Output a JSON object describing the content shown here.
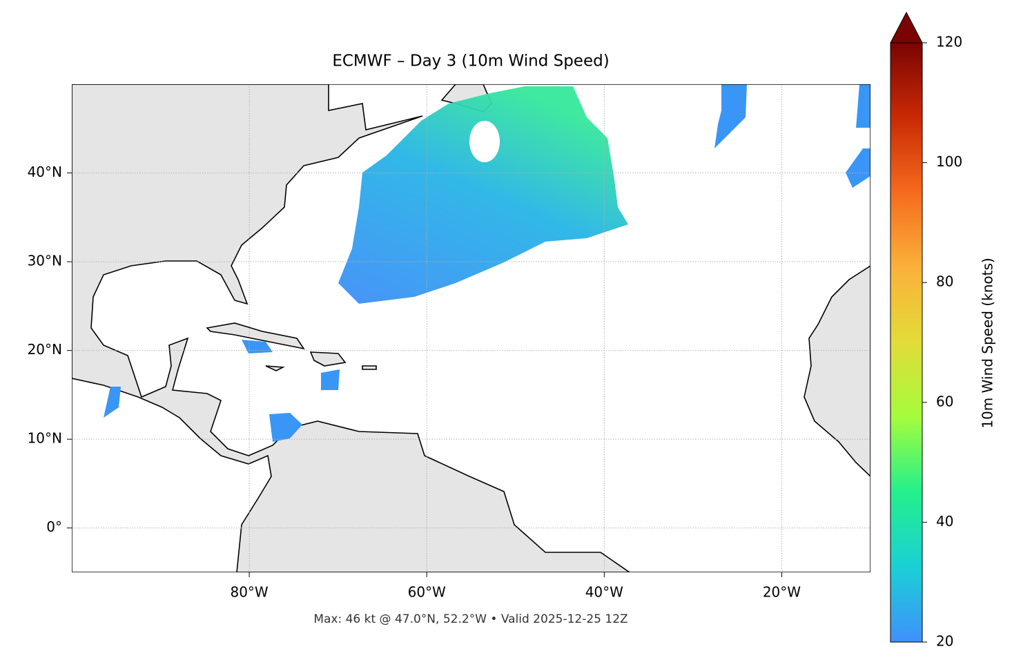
{
  "chart_data": {
    "type": "map",
    "title": "ECMWF – Day 3 (10m Wind Speed)",
    "annotation": "Max: 46 kt @ 47.0°N, 52.2°W • Valid 2025-12-25 12Z",
    "xlim": [
      -100,
      -10
    ],
    "ylim": [
      -5,
      50
    ],
    "xticks": [
      {
        "value": -80,
        "label": "80°W"
      },
      {
        "value": -60,
        "label": "60°W"
      },
      {
        "value": -40,
        "label": "40°W"
      },
      {
        "value": -20,
        "label": "20°W"
      }
    ],
    "yticks": [
      {
        "value": 0,
        "label": "0°"
      },
      {
        "value": 10,
        "label": "10°N"
      },
      {
        "value": 20,
        "label": "20°N"
      },
      {
        "value": 30,
        "label": "30°N"
      },
      {
        "value": 40,
        "label": "40°N"
      }
    ],
    "grid": true,
    "colorbar": {
      "label": "10m Wind Speed (knots)",
      "lim": [
        20,
        120
      ],
      "ticks": [
        20,
        40,
        60,
        80,
        100,
        120
      ],
      "colors": [
        "#4090fd",
        "#1ad0d5",
        "#22f08c",
        "#a4fc3c",
        "#e2dc38",
        "#fbb13a",
        "#f56b1d",
        "#c92a04",
        "#7a0403"
      ]
    }
  }
}
